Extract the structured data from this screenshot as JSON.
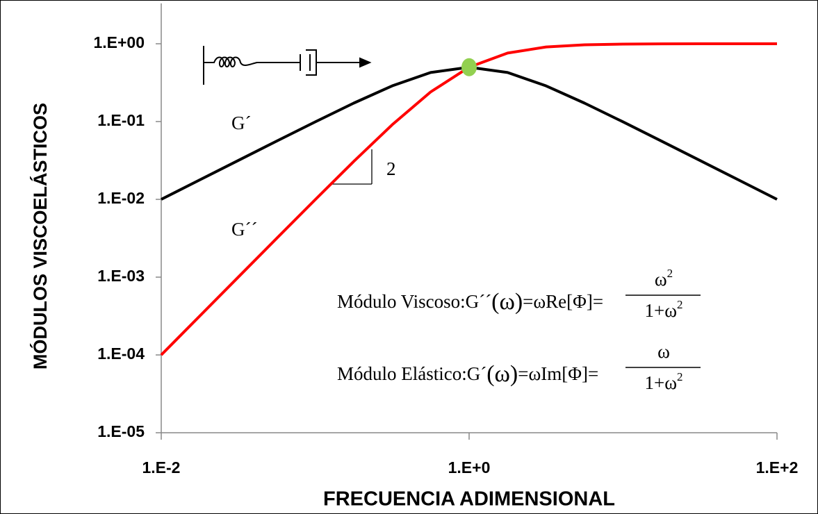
{
  "chart_data": {
    "type": "line",
    "x_label": "FRECUENCIA ADIMENSIONAL",
    "y_label": "MÓDULOS VISCOELÁSTICOS",
    "x": [
      0.01,
      0.017783,
      0.031623,
      0.056234,
      0.1,
      0.17783,
      0.31623,
      0.56234,
      1,
      1.7783,
      3.1623,
      5.6234,
      10,
      17.783,
      31.623,
      56.234,
      100
    ],
    "series": [
      {
        "name": "G´",
        "color": "#000000",
        "values": [
          0.009999,
          0.017777,
          0.031591,
          0.056057,
          0.09901,
          0.17238,
          0.28748,
          0.42724,
          0.5,
          0.42724,
          0.28748,
          0.17238,
          0.09901,
          0.056057,
          0.031591,
          0.017777,
          0.009999
        ]
      },
      {
        "name": "G´´",
        "color": "#ff0000",
        "values": [
          9.999e-05,
          0.00031613,
          0.000999,
          0.0031523,
          0.009901,
          0.030654,
          0.090909,
          0.24025,
          0.5,
          0.75975,
          0.90909,
          0.96935,
          0.9901,
          0.99685,
          0.999,
          0.99968,
          0.9999
        ]
      }
    ],
    "marker": {
      "x": 1,
      "y": 0.5,
      "color": "#92d050"
    },
    "slope_label": "2",
    "formulas": [
      {
        "lhs": "Módulo Viscoso:G´´",
        "arg": "(ω)",
        "rhs": "=ωRe[Φ]=",
        "num": "ω",
        "num_exp": "2",
        "den": "1+ω",
        "den_exp": "2"
      },
      {
        "lhs": "Módulo Elástico:G´",
        "arg": "(ω)",
        "rhs": "=ωIm[Φ]=",
        "num": "ω",
        "den": "1+ω",
        "den_exp": "2"
      }
    ],
    "log_x": true,
    "log_y": true,
    "xlim": [
      0.01,
      100
    ],
    "ylim": [
      1e-05,
      3.3
    ],
    "xticks": [
      {
        "value": 0.01,
        "label": "1.E-2"
      },
      {
        "value": 1,
        "label": "1.E+0"
      },
      {
        "value": 100,
        "label": "1.E+2"
      }
    ],
    "yticks": [
      {
        "value": 1e-05,
        "label": "1.E-05"
      },
      {
        "value": 0.0001,
        "label": "1.E-04"
      },
      {
        "value": 0.001,
        "label": "1.E-03"
      },
      {
        "value": 0.01,
        "label": "1.E-02"
      },
      {
        "value": 0.1,
        "label": "1.E-01"
      },
      {
        "value": 1,
        "label": "1.E+00"
      }
    ]
  }
}
